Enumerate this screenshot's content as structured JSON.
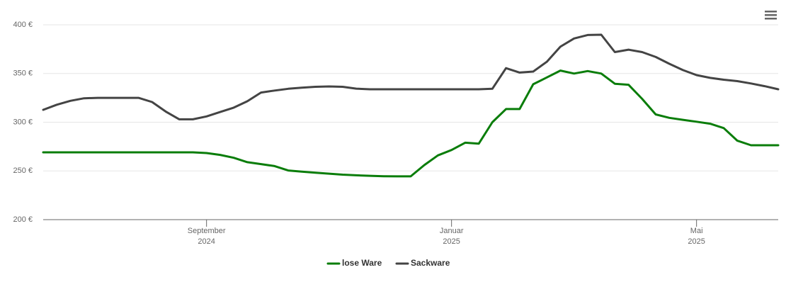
{
  "chart_data": {
    "type": "line",
    "categories": [
      null,
      null,
      null,
      null,
      null,
      null,
      null,
      null,
      null,
      null,
      null,
      null,
      "September 2024",
      null,
      null,
      null,
      null,
      null,
      null,
      null,
      null,
      null,
      null,
      null,
      null,
      null,
      null,
      null,
      null,
      null,
      "Januar 2025",
      null,
      null,
      null,
      null,
      null,
      null,
      null,
      null,
      null,
      null,
      null,
      null,
      null,
      null,
      null,
      null,
      null,
      "Mai 2025",
      null,
      null,
      null,
      null,
      null,
      null
    ],
    "series": [
      {
        "name": "lose Ware",
        "color": "#0a7d0a",
        "values": [
          269.1,
          269.1,
          269.1,
          269.1,
          269.1,
          269.1,
          269.1,
          269.1,
          269.1,
          269.1,
          269.1,
          269.1,
          268.4,
          266.5,
          263.5,
          259,
          257,
          255,
          250.5,
          249.3,
          248.2,
          247.2,
          246.2,
          245.5,
          245,
          244.6,
          244.4,
          244.4,
          256,
          266,
          271.5,
          279,
          278,
          300,
          313.5,
          313.5,
          339,
          346,
          353,
          350,
          352.5,
          350,
          339.5,
          338.5,
          324,
          308,
          304.5,
          302.5,
          300.5,
          298.5,
          294,
          281,
          276.4,
          276.4,
          276.4
        ]
      },
      {
        "name": "Sackware",
        "color": "#444444",
        "values": [
          312.7,
          318,
          322,
          324.6,
          325,
          325,
          325,
          325,
          320.7,
          311,
          303,
          303,
          306,
          310.5,
          315,
          321.5,
          330.5,
          332.5,
          334.3,
          335.5,
          336.4,
          336.7,
          336.4,
          334.5,
          333.8,
          333.8,
          333.8,
          333.8,
          333.8,
          333.8,
          333.8,
          333.8,
          333.8,
          334.3,
          355.5,
          351,
          352,
          362,
          377.5,
          386,
          389.5,
          389.8,
          372,
          374.5,
          372,
          367,
          360,
          353.5,
          348.4,
          345.5,
          343.6,
          342.2,
          339.8,
          337,
          333.8
        ]
      }
    ],
    "ylim": [
      200,
      400
    ],
    "yticks": [
      {
        "value": 200,
        "label": "200 €"
      },
      {
        "value": 250,
        "label": "250 €"
      },
      {
        "value": 300,
        "label": "300 €"
      },
      {
        "value": 350,
        "label": "350 €"
      },
      {
        "value": 400,
        "label": "400 €"
      }
    ],
    "grid": true
  }
}
